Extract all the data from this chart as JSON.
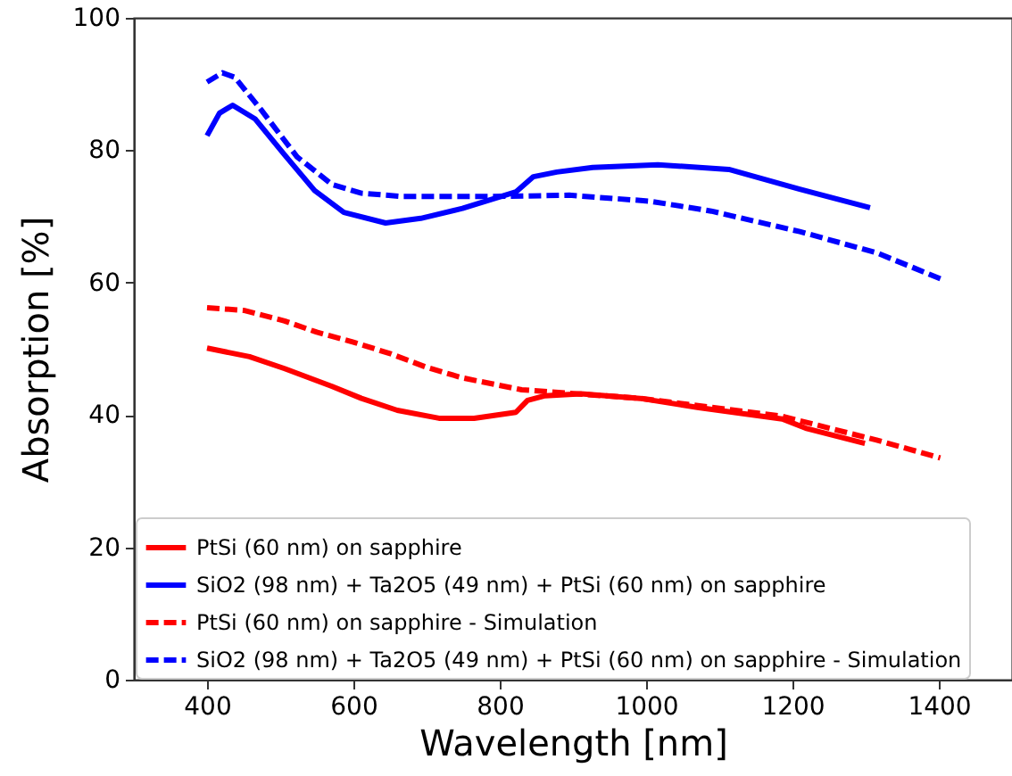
{
  "chart_data": {
    "type": "line",
    "xlabel": "Wavelength [nm]",
    "ylabel": "Absorption [%]",
    "xlim": [
      300,
      1500
    ],
    "ylim": [
      0,
      100
    ],
    "xticks": [
      400,
      600,
      800,
      1000,
      1200,
      1400
    ],
    "yticks": [
      0,
      20,
      40,
      60,
      80,
      100
    ],
    "legend": "bottom",
    "series": [
      {
        "name": "PtSi (60 nm) on sapphire",
        "color": "#ff0000",
        "line_style": "solid",
        "x": [
          400,
          458,
          506,
          571,
          611,
          660,
          717,
          765,
          822,
          838,
          862,
          911,
          992,
          1072,
          1186,
          1218,
          1299
        ],
        "values": [
          50.1,
          48.8,
          47.0,
          44.3,
          42.5,
          40.7,
          39.5,
          39.5,
          40.4,
          42.2,
          42.9,
          43.2,
          42.5,
          41.1,
          39.4,
          38.0,
          35.7
        ]
      },
      {
        "name": "SiO2 (98 nm) + Ta2O5 (49 nm) + PtSi (60 nm) on sapphire",
        "color": "#0000ff",
        "line_style": "solid",
        "x": [
          400,
          417,
          435,
          466,
          506,
          547,
          587,
          644,
          692,
          749,
          822,
          846,
          878,
          927,
          1016,
          1113,
          1210,
          1306
        ],
        "values": [
          82.2,
          85.6,
          86.8,
          84.7,
          79.3,
          73.9,
          70.6,
          69.0,
          69.7,
          71.2,
          73.7,
          76.0,
          76.7,
          77.4,
          77.8,
          77.1,
          74.1,
          71.3
        ]
      },
      {
        "name": "PtSi (60 nm) on sapphire - Simulation",
        "color": "#ff0000",
        "line_style": "dashed",
        "x": [
          400,
          450,
          506,
          550,
          600,
          652,
          700,
          749,
          830,
          992,
          1186,
          1315,
          1402
        ],
        "values": [
          56.2,
          55.8,
          54.2,
          52.5,
          51.0,
          49.2,
          47.2,
          45.6,
          43.8,
          42.5,
          39.8,
          36.2,
          33.5
        ]
      },
      {
        "name": "SiO2 (98 nm) + Ta2O5 (49 nm) + PtSi (60 nm) on sapphire - Simulation",
        "color": "#0000ff",
        "line_style": "dashed",
        "x": [
          400,
          421,
          438,
          474,
          523,
          571,
          611,
          668,
          790,
          895,
          1005,
          1089,
          1210,
          1315,
          1404
        ],
        "values": [
          90.3,
          91.7,
          91.0,
          86.1,
          79.0,
          74.8,
          73.5,
          73.0,
          73.0,
          73.2,
          72.3,
          70.8,
          67.7,
          64.5,
          60.5
        ]
      }
    ]
  }
}
